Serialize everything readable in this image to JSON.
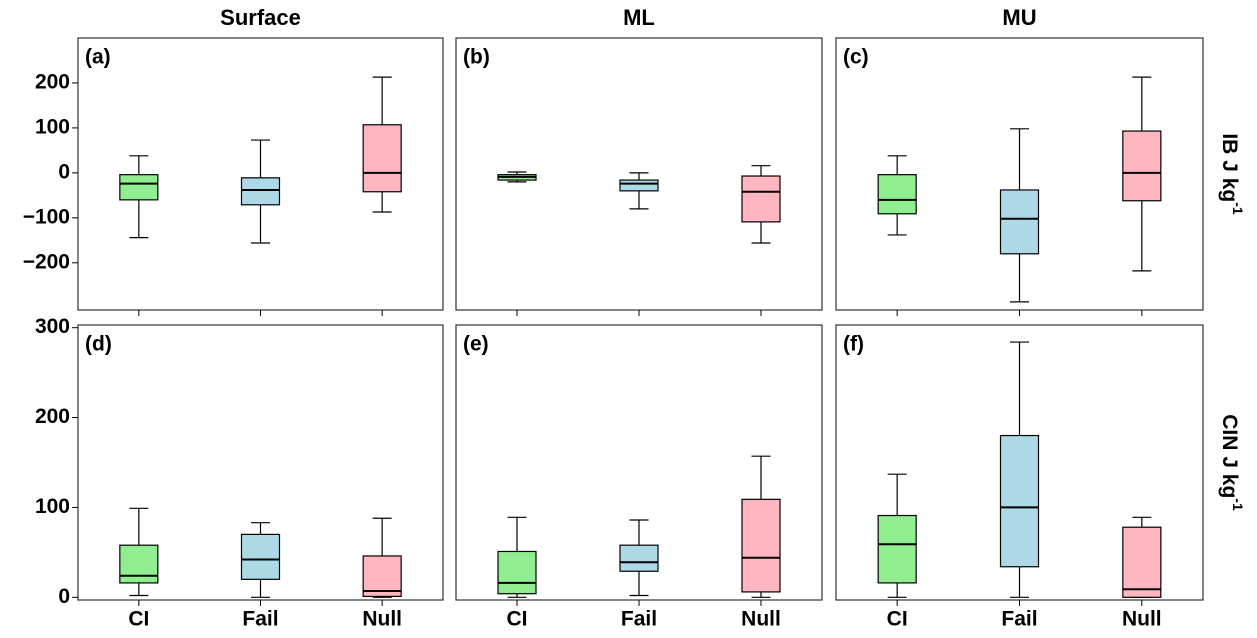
{
  "chart_data": [
    {
      "type": "box",
      "title": "Surface",
      "panel_label": "(a)",
      "ylim": [
        -305,
        300
      ],
      "yticks": [
        {
          "value": -200,
          "label": "−200"
        },
        {
          "value": -100,
          "label": "−100"
        },
        0,
        100,
        200
      ],
      "boxes": [
        {
          "whislo": -144,
          "q1": -60,
          "med": -24,
          "q3": -4,
          "whishi": 38,
          "color": "#90ee90"
        },
        {
          "whislo": -156,
          "q1": -71,
          "med": -38,
          "q3": -11,
          "whishi": 73,
          "color": "#add8e6"
        },
        {
          "whislo": -87,
          "q1": -42,
          "med": 0,
          "q3": 107,
          "whishi": 213,
          "color": "#ffb6c1"
        }
      ]
    },
    {
      "type": "box",
      "title": "ML",
      "panel_label": "(b)",
      "ylim": [
        -305,
        300
      ],
      "boxes": [
        {
          "whislo": -20,
          "q1": -16,
          "med": -9,
          "q3": -4,
          "whishi": 2,
          "color": "#90ee90"
        },
        {
          "whislo": -80,
          "q1": -40,
          "med": -24,
          "q3": -16,
          "whishi": 0,
          "color": "#add8e6"
        },
        {
          "whislo": -156,
          "q1": -109,
          "med": -42,
          "q3": -7,
          "whishi": 16,
          "color": "#ffb6c1"
        }
      ]
    },
    {
      "type": "box",
      "title": "MU",
      "panel_label": "(c)",
      "ylim": [
        -305,
        300
      ],
      "ylabel": "IB J kg",
      "ylabel_superscript": "-1",
      "boxes": [
        {
          "whislo": -138,
          "q1": -91,
          "med": -60,
          "q3": -4,
          "whishi": 38,
          "color": "#90ee90"
        },
        {
          "whislo": -287,
          "q1": -180,
          "med": -102,
          "q3": -38,
          "whishi": 98,
          "color": "#add8e6"
        },
        {
          "whislo": -218,
          "q1": -62,
          "med": 0,
          "q3": 93,
          "whishi": 213,
          "color": "#ffb6c1"
        }
      ]
    },
    {
      "type": "box",
      "panel_label": "(d)",
      "ylim": [
        -3,
        303
      ],
      "yticks": [
        0,
        100,
        200,
        300
      ],
      "categories": [
        "CI",
        "Fail",
        "Null"
      ],
      "boxes": [
        {
          "whislo": 2,
          "q1": 16,
          "med": 24,
          "q3": 58,
          "whishi": 99,
          "color": "#90ee90"
        },
        {
          "whislo": 0,
          "q1": 20,
          "med": 42,
          "q3": 70,
          "whishi": 83,
          "color": "#add8e6"
        },
        {
          "whislo": 0,
          "q1": 1,
          "med": 7,
          "q3": 46,
          "whishi": 88,
          "color": "#ffb6c1"
        }
      ]
    },
    {
      "type": "box",
      "panel_label": "(e)",
      "ylim": [
        -3,
        303
      ],
      "categories": [
        "CI",
        "Fail",
        "Null"
      ],
      "boxes": [
        {
          "whislo": 0,
          "q1": 4,
          "med": 16,
          "q3": 51,
          "whishi": 89,
          "color": "#90ee90"
        },
        {
          "whislo": 2,
          "q1": 29,
          "med": 39,
          "q3": 58,
          "whishi": 86,
          "color": "#add8e6"
        },
        {
          "whislo": 0,
          "q1": 6,
          "med": 44,
          "q3": 109,
          "whishi": 157,
          "color": "#ffb6c1"
        }
      ]
    },
    {
      "type": "box",
      "panel_label": "(f)",
      "ylim": [
        -3,
        303
      ],
      "ylabel": "CIN J kg",
      "ylabel_superscript": "-1",
      "categories": [
        "CI",
        "Fail",
        "Null"
      ],
      "boxes": [
        {
          "whislo": 0,
          "q1": 16,
          "med": 59,
          "q3": 91,
          "whishi": 137,
          "color": "#90ee90"
        },
        {
          "whislo": 0,
          "q1": 34,
          "med": 100,
          "q3": 180,
          "whishi": 284,
          "color": "#add8e6"
        },
        {
          "whislo": 0,
          "q1": 0,
          "med": 9,
          "q3": 78,
          "whishi": 89,
          "color": "#ffb6c1"
        }
      ]
    }
  ]
}
